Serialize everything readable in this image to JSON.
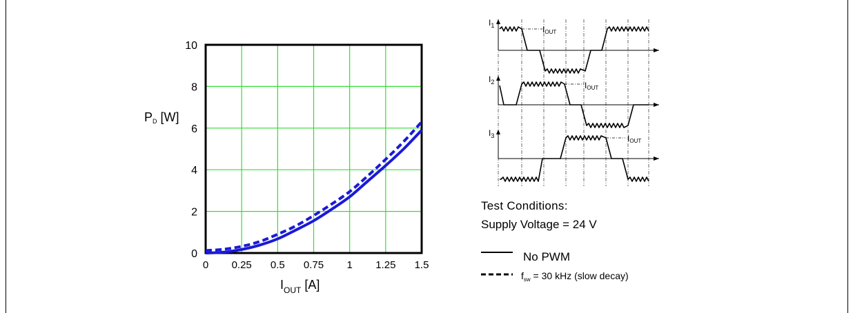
{
  "chart_data": {
    "type": "line",
    "title": "",
    "ylabel": "P",
    "ylabel_sub": "D",
    "ylabel_unit": "[W]",
    "xlabel": "I",
    "xlabel_sub": "OUT",
    "xlabel_unit": "[A]",
    "xlim": [
      0,
      1.5
    ],
    "ylim": [
      0,
      10
    ],
    "x_ticks": [
      "0",
      "0.25",
      "0.5",
      "0.75",
      "1",
      "1.25",
      "1.5"
    ],
    "y_ticks": [
      "0",
      "2",
      "4",
      "6",
      "8",
      "10"
    ],
    "grid": true,
    "grid_color": "#33dd33",
    "series": [
      {
        "name": "No PWM",
        "style": "solid",
        "color": "#1a1ad6",
        "x": [
          0,
          0.125,
          0.25,
          0.375,
          0.5,
          0.625,
          0.75,
          0.875,
          1.0,
          1.125,
          1.25,
          1.375,
          1.5
        ],
        "y": [
          0.0,
          0.04,
          0.17,
          0.38,
          0.68,
          1.1,
          1.55,
          2.1,
          2.7,
          3.45,
          4.2,
          5.0,
          5.9
        ]
      },
      {
        "name": "f_sw = 30 kHz (slow decay)",
        "style": "dashed",
        "color": "#1a1ad6",
        "x": [
          0,
          0.125,
          0.25,
          0.375,
          0.5,
          0.625,
          0.75,
          0.875,
          1.0,
          1.125,
          1.25,
          1.375,
          1.5
        ],
        "y": [
          0.12,
          0.18,
          0.32,
          0.55,
          0.9,
          1.3,
          1.8,
          2.35,
          2.95,
          3.7,
          4.5,
          5.35,
          6.3
        ]
      }
    ]
  },
  "waveform": {
    "labels": [
      {
        "main": "I",
        "sub": "1"
      },
      {
        "main": "I",
        "sub": "2"
      },
      {
        "main": "I",
        "sub": "3"
      }
    ],
    "iout_main": "I",
    "iout_sub": "OUT"
  },
  "test_conditions": {
    "heading": "Test Conditions:",
    "supply": "Supply Voltage = 24 V"
  },
  "legend": {
    "solid_label": "No PWM",
    "dashed_prefix": "f",
    "dashed_sub": "sw",
    "dashed_suffix": " = 30 kHz (slow decay)"
  }
}
